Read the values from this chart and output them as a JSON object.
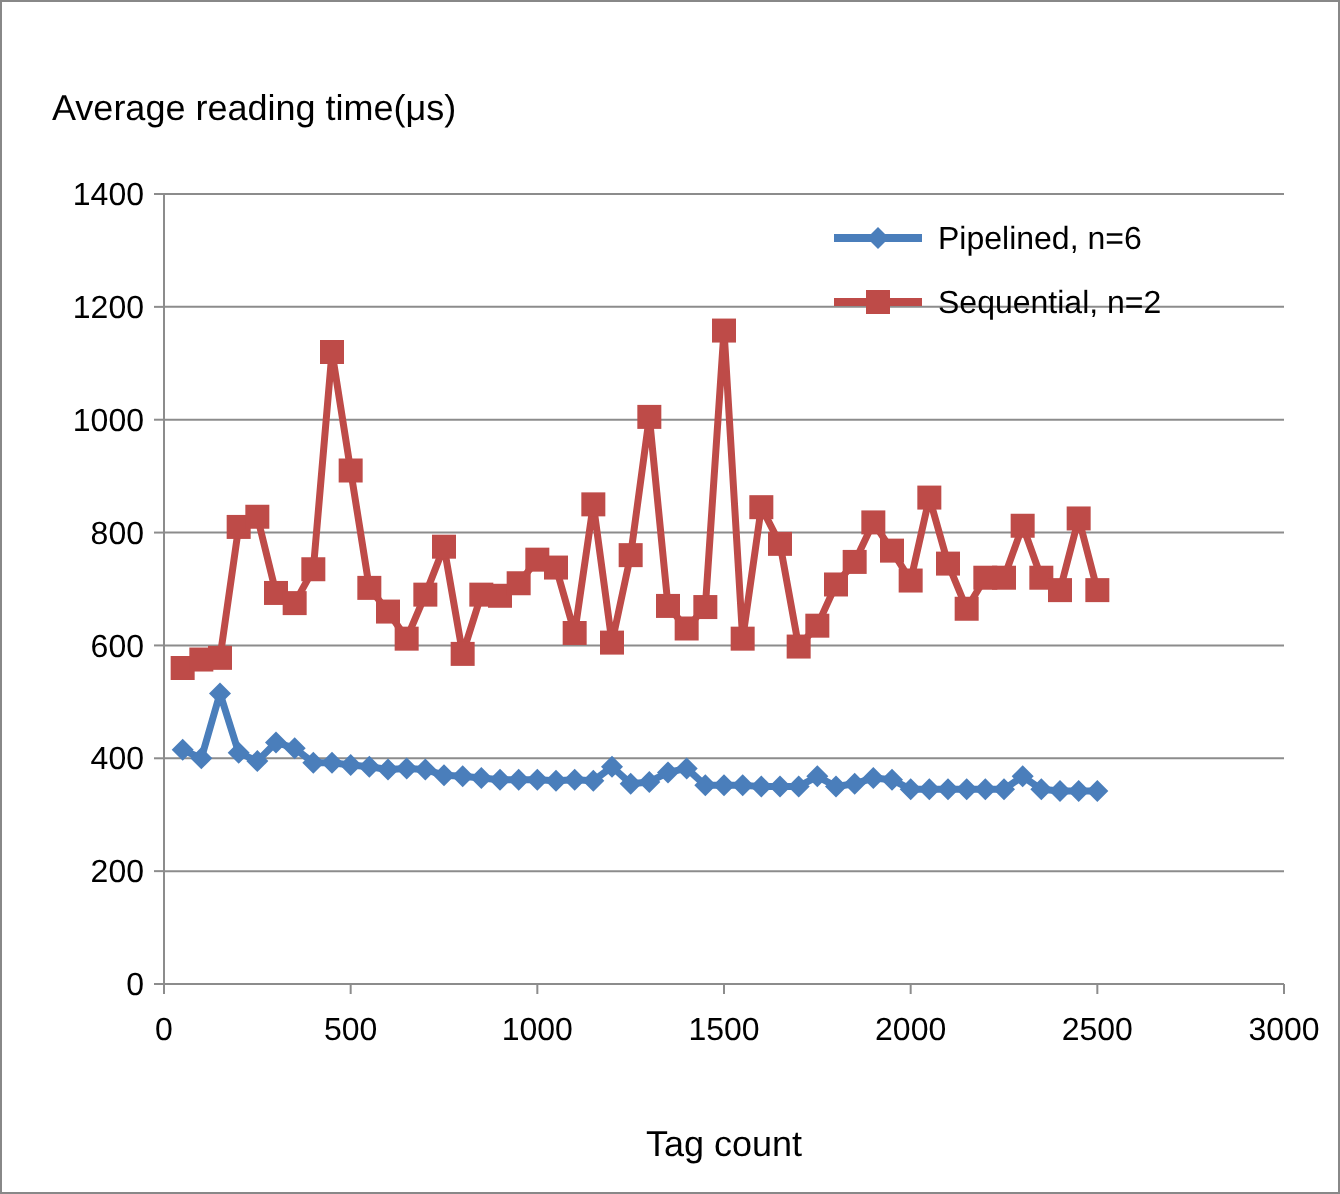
{
  "chart_data": {
    "type": "line",
    "ylabel": "Average reading time(μs)",
    "xlabel": "Tag count",
    "x": [
      50,
      100,
      150,
      200,
      250,
      300,
      350,
      400,
      450,
      500,
      550,
      600,
      650,
      700,
      750,
      800,
      850,
      900,
      950,
      1000,
      1050,
      1100,
      1150,
      1200,
      1250,
      1300,
      1350,
      1400,
      1450,
      1500,
      1550,
      1600,
      1650,
      1700,
      1750,
      1800,
      1850,
      1900,
      1950,
      2000,
      2050,
      2100,
      2150,
      2200,
      2250,
      2300,
      2350,
      2400,
      2450,
      2500
    ],
    "xlim": [
      0,
      3000
    ],
    "xticks": [
      0,
      500,
      1000,
      1500,
      2000,
      2500,
      3000
    ],
    "ylim": [
      0,
      1400
    ],
    "yticks": [
      0,
      200,
      400,
      600,
      800,
      1000,
      1200,
      1400
    ],
    "grid": "y",
    "legend": "top right",
    "line_style": "solid",
    "series": [
      {
        "name": "Pipelined, n=6",
        "color": "#4a7ebb",
        "marker": "diamond",
        "values": [
          415,
          400,
          515,
          410,
          395,
          428,
          418,
          392,
          392,
          388,
          385,
          380,
          382,
          380,
          370,
          368,
          365,
          362,
          362,
          362,
          360,
          362,
          360,
          385,
          355,
          358,
          375,
          382,
          352,
          352,
          352,
          350,
          350,
          350,
          368,
          350,
          355,
          365,
          362,
          345,
          345,
          345,
          345,
          345,
          345,
          368,
          345,
          342,
          342,
          342
        ]
      },
      {
        "name": "Sequential, n=2",
        "color": "#be4b48",
        "marker": "square",
        "values": [
          560,
          575,
          578,
          810,
          828,
          693,
          675,
          735,
          1120,
          910,
          702,
          660,
          612,
          690,
          775,
          585,
          690,
          688,
          710,
          752,
          738,
          622,
          850,
          605,
          760,
          1005,
          670,
          630,
          668,
          1158,
          612,
          845,
          780,
          598,
          635,
          708,
          748,
          818,
          768,
          715,
          862,
          745,
          665,
          720,
          720,
          812,
          720,
          698,
          825,
          698
        ]
      }
    ]
  }
}
